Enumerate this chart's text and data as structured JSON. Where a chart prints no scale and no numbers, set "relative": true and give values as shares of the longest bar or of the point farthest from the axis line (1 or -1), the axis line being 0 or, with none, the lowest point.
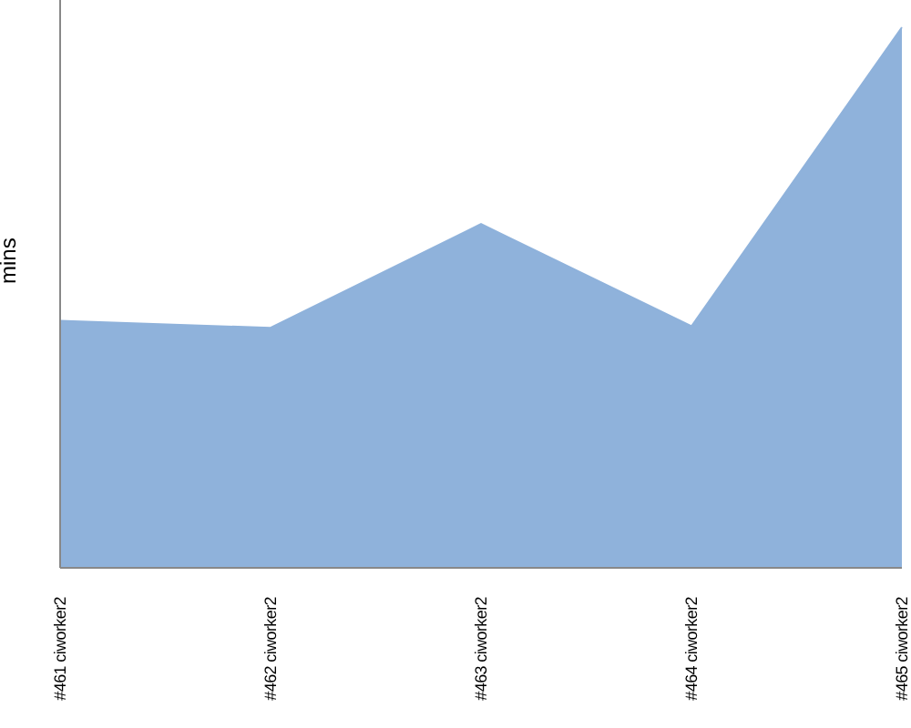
{
  "chart_data": {
    "type": "area",
    "ylabel": "mins",
    "relative": true,
    "categories": [
      "#461 ciworker2",
      "#462 ciworker2",
      "#463 ciworker2",
      "#464 ciworker2",
      "#465 ciworker2"
    ],
    "series": [
      {
        "color": "#8fb2db",
        "values": [
          0.457,
          0.444,
          0.636,
          0.447,
          1.0
        ]
      }
    ],
    "grid": false,
    "legend": false
  }
}
